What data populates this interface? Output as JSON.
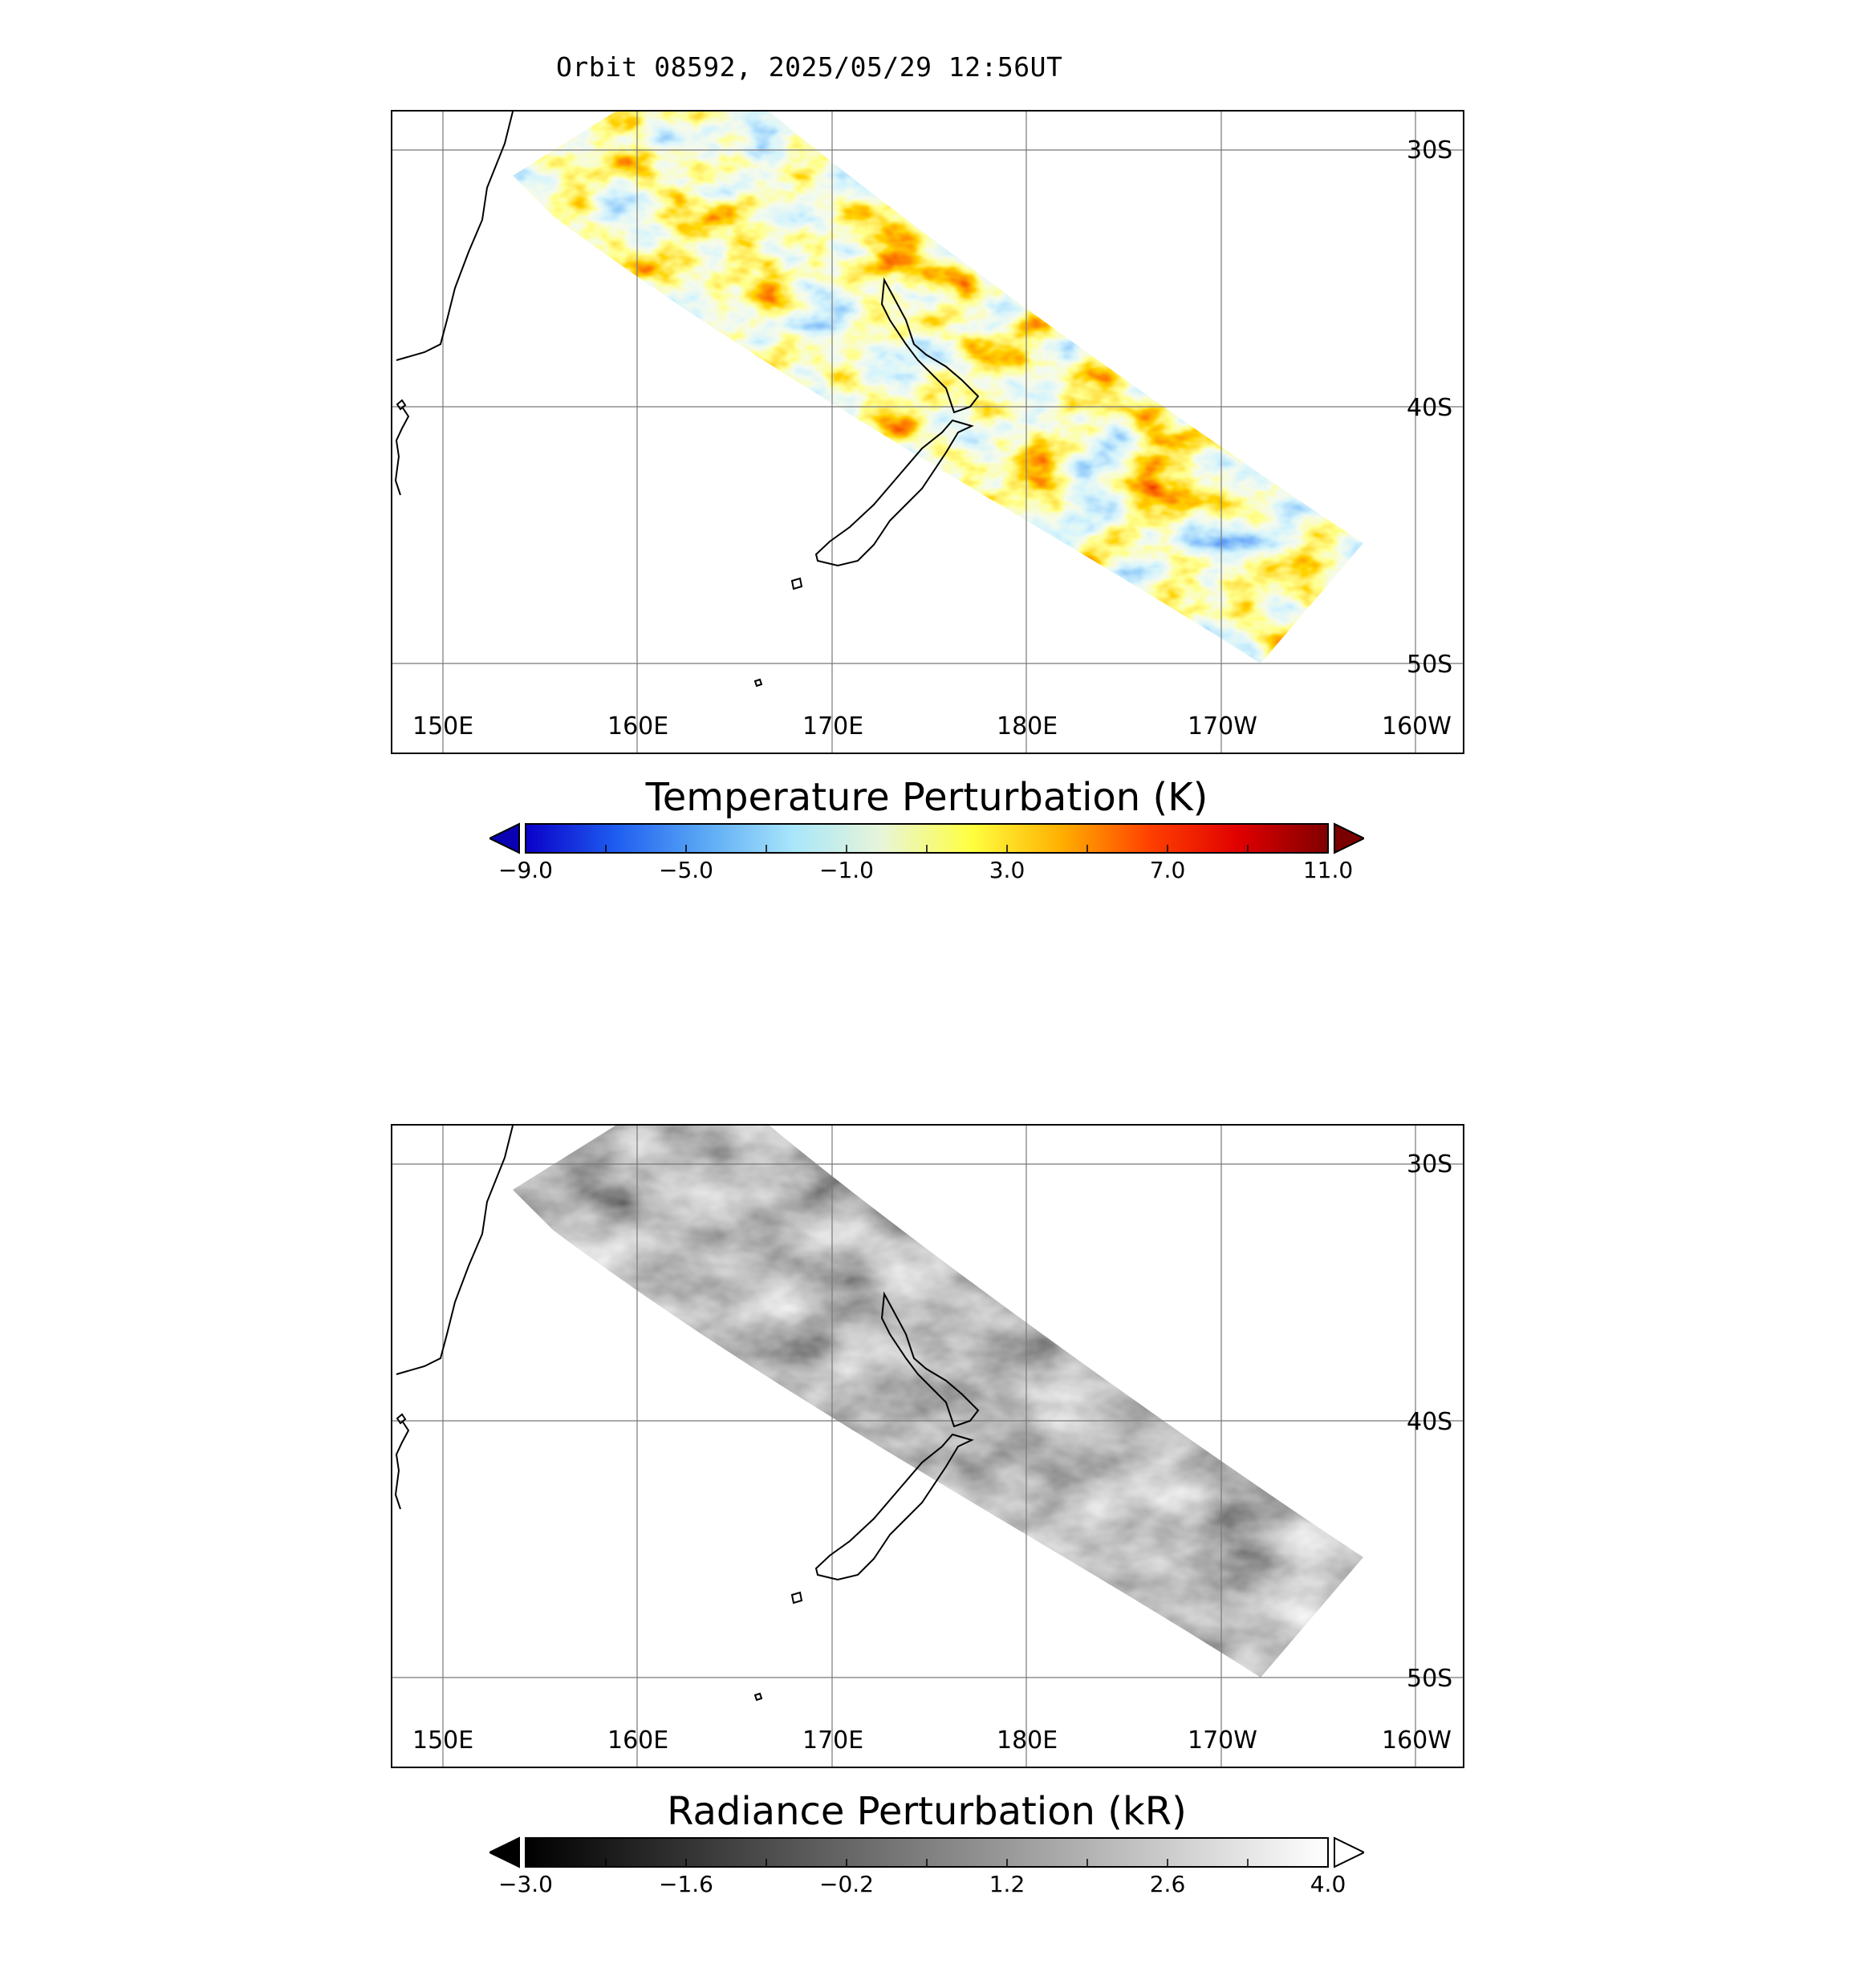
{
  "title": "Orbit 08592, 2025/05/29 12:56UT",
  "map": {
    "lon_labels": [
      "150E",
      "160E",
      "170E",
      "180E",
      "170W",
      "160W"
    ],
    "lat_labels": [
      "30S",
      "40S",
      "50S"
    ],
    "grid": true
  },
  "panels": [
    {
      "colorbar_title": "Temperature Perturbation (K)",
      "tick_labels": [
        "−9.0",
        "−5.0",
        "−1.0",
        "3.0",
        "7.0",
        "11.0"
      ],
      "range": [
        -9.0,
        11.0
      ],
      "colormap": [
        "#0a00c8",
        "#1e5cf0",
        "#5aa8f5",
        "#a8e6fa",
        "#e8f5d8",
        "#ffff40",
        "#ffb000",
        "#ff4000",
        "#e00000",
        "#800000"
      ],
      "under_color": "#0a00b4",
      "over_color": "#7a0000"
    },
    {
      "colorbar_title": "Radiance Perturbation (kR)",
      "tick_labels": [
        "−3.0",
        "−1.6",
        "−0.2",
        "1.2",
        "2.6",
        "4.0"
      ],
      "range": [
        -3.0,
        4.0
      ],
      "colormap": [
        "#000000",
        "#555555",
        "#aaaaaa",
        "#ffffff"
      ],
      "under_color": "#000000",
      "over_color": "#ffffff"
    }
  ]
}
